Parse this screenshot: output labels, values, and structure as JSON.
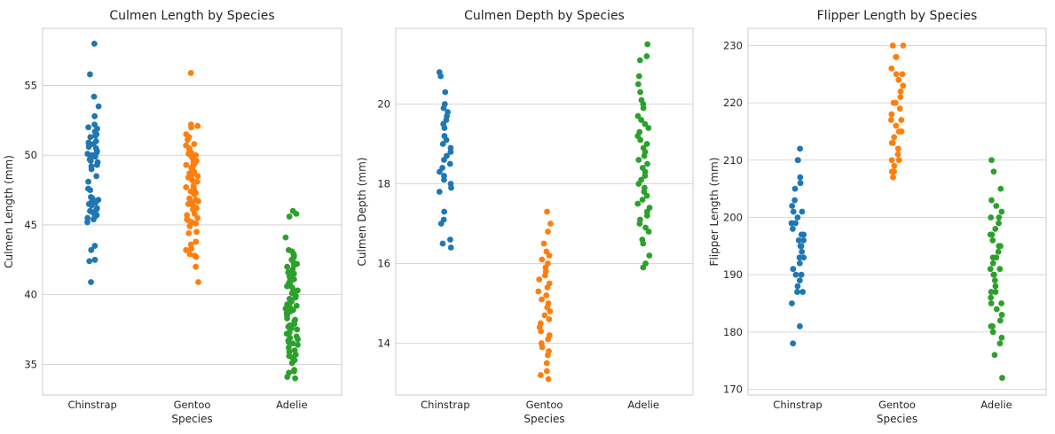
{
  "figure": {
    "xlabel": "Species",
    "categories": [
      "Chinstrap",
      "Gentoo",
      "Adelie"
    ],
    "colors": {
      "Chinstrap": "#1f77b4",
      "Gentoo": "#ff7f0e",
      "Adelie": "#2ca02c"
    },
    "grid": true
  },
  "chart_data": [
    {
      "type": "scatter",
      "title": "Culmen Length by Species",
      "xlabel": "Species",
      "ylabel": "Culmen Length (mm)",
      "categories": [
        "Chinstrap",
        "Gentoo",
        "Adelie"
      ],
      "ylim": [
        32.8,
        59.1
      ],
      "yticks": [
        35,
        40,
        45,
        50,
        55
      ],
      "series": [
        {
          "name": "Chinstrap",
          "values": [
            58.0,
            55.8,
            54.2,
            53.5,
            52.8,
            52.2,
            52.0,
            51.9,
            51.7,
            51.5,
            51.4,
            51.3,
            51.0,
            50.9,
            50.8,
            50.7,
            50.6,
            50.5,
            50.3,
            50.2,
            50.1,
            50.0,
            49.9,
            49.8,
            49.7,
            49.6,
            49.5,
            49.3,
            49.2,
            49.0,
            48.5,
            48.1,
            47.6,
            47.5,
            47.0,
            46.9,
            46.8,
            46.7,
            46.6,
            46.5,
            46.4,
            46.2,
            46.1,
            46.0,
            45.9,
            45.7,
            45.6,
            45.5,
            45.4,
            45.2,
            43.5,
            43.2,
            42.5,
            42.4,
            40.9
          ]
        },
        {
          "name": "Gentoo",
          "values": [
            55.9,
            52.2,
            52.1,
            52.0,
            51.5,
            51.3,
            51.1,
            50.8,
            50.7,
            50.5,
            50.4,
            50.2,
            50.1,
            50.0,
            49.9,
            49.8,
            49.6,
            49.5,
            49.4,
            49.3,
            49.2,
            49.1,
            49.0,
            48.8,
            48.7,
            48.6,
            48.5,
            48.4,
            48.2,
            48.1,
            47.8,
            47.7,
            47.6,
            47.5,
            47.4,
            47.3,
            47.2,
            46.9,
            46.8,
            46.7,
            46.6,
            46.5,
            46.4,
            46.3,
            46.2,
            46.1,
            45.8,
            45.7,
            45.5,
            45.4,
            45.3,
            45.2,
            45.1,
            44.9,
            44.5,
            44.4,
            43.8,
            43.6,
            43.3,
            43.2,
            42.9,
            42.8,
            42.7,
            42.0,
            40.9
          ]
        },
        {
          "name": "Adelie",
          "values": [
            46.0,
            45.8,
            45.6,
            44.1,
            43.2,
            43.1,
            42.9,
            42.8,
            42.7,
            42.5,
            42.3,
            42.2,
            42.1,
            42.0,
            41.8,
            41.6,
            41.5,
            41.4,
            41.3,
            41.1,
            41.0,
            40.9,
            40.8,
            40.7,
            40.6,
            40.5,
            40.3,
            40.2,
            40.1,
            39.9,
            39.8,
            39.7,
            39.6,
            39.5,
            39.3,
            39.2,
            39.1,
            39.0,
            38.9,
            38.8,
            38.7,
            38.6,
            38.5,
            38.3,
            38.2,
            38.1,
            37.9,
            37.8,
            37.7,
            37.6,
            37.5,
            37.3,
            37.2,
            37.0,
            36.9,
            36.8,
            36.7,
            36.6,
            36.5,
            36.4,
            36.2,
            36.0,
            35.9,
            35.7,
            35.6,
            35.5,
            35.3,
            35.1,
            34.6,
            34.5,
            34.4,
            34.1,
            34.0
          ]
        }
      ]
    },
    {
      "type": "scatter",
      "title": "Culmen Depth by Species",
      "xlabel": "Species",
      "ylabel": "Culmen Depth (mm)",
      "categories": [
        "Chinstrap",
        "Gentoo",
        "Adelie"
      ],
      "ylim": [
        12.7,
        21.9
      ],
      "yticks": [
        14,
        16,
        18,
        20
      ],
      "series": [
        {
          "name": "Chinstrap",
          "values": [
            20.8,
            20.7,
            20.3,
            20.0,
            19.9,
            19.8,
            19.7,
            19.6,
            19.5,
            19.4,
            19.2,
            19.1,
            19.0,
            18.9,
            18.8,
            18.7,
            18.6,
            18.5,
            18.4,
            18.3,
            18.2,
            18.1,
            18.0,
            17.9,
            17.8,
            17.3,
            17.1,
            17.0,
            16.6,
            16.5,
            16.4
          ]
        },
        {
          "name": "Gentoo",
          "values": [
            17.3,
            17.0,
            16.8,
            16.5,
            16.3,
            16.2,
            16.1,
            16.0,
            15.9,
            15.8,
            15.7,
            15.6,
            15.5,
            15.4,
            15.3,
            15.2,
            15.1,
            15.0,
            14.9,
            14.8,
            14.7,
            14.6,
            14.5,
            14.4,
            14.3,
            14.2,
            14.1,
            14.0,
            13.9,
            13.8,
            13.7,
            13.5,
            13.3,
            13.2,
            13.1
          ]
        },
        {
          "name": "Adelie",
          "values": [
            21.5,
            21.2,
            21.1,
            20.7,
            20.5,
            20.3,
            20.1,
            20.0,
            19.9,
            19.7,
            19.6,
            19.5,
            19.4,
            19.3,
            19.2,
            19.1,
            19.0,
            18.9,
            18.8,
            18.7,
            18.6,
            18.5,
            18.4,
            18.3,
            18.2,
            18.1,
            18.0,
            17.9,
            17.8,
            17.7,
            17.6,
            17.5,
            17.4,
            17.3,
            17.2,
            17.1,
            17.0,
            16.9,
            16.8,
            16.6,
            16.5,
            16.2,
            16.0,
            15.9
          ]
        }
      ]
    },
    {
      "type": "scatter",
      "title": "Flipper Length by Species",
      "xlabel": "Species",
      "ylabel": "Flipper Length (mm)",
      "categories": [
        "Chinstrap",
        "Gentoo",
        "Adelie"
      ],
      "ylim": [
        169,
        233
      ],
      "yticks": [
        170,
        180,
        190,
        200,
        210,
        220,
        230
      ],
      "series": [
        {
          "name": "Chinstrap",
          "values": [
            212,
            210,
            210,
            207,
            206,
            205,
            203,
            202,
            201,
            201,
            200,
            199,
            199,
            198,
            197,
            197,
            196,
            196,
            195,
            195,
            194,
            193,
            193,
            192,
            191,
            190,
            190,
            189,
            188,
            187,
            187,
            185,
            181,
            178
          ]
        },
        {
          "name": "Gentoo",
          "values": [
            230,
            230,
            228,
            228,
            226,
            225,
            225,
            224,
            223,
            222,
            221,
            220,
            220,
            219,
            218,
            217,
            217,
            216,
            215,
            215,
            214,
            213,
            213,
            212,
            211,
            210,
            210,
            209,
            208,
            208,
            207
          ]
        },
        {
          "name": "Adelie",
          "values": [
            210,
            208,
            205,
            203,
            202,
            201,
            200,
            200,
            199,
            198,
            197,
            197,
            196,
            195,
            195,
            194,
            193,
            193,
            192,
            191,
            191,
            190,
            190,
            189,
            188,
            187,
            187,
            186,
            185,
            185,
            184,
            183,
            182,
            181,
            181,
            180,
            179,
            178,
            176,
            172
          ]
        }
      ]
    }
  ]
}
